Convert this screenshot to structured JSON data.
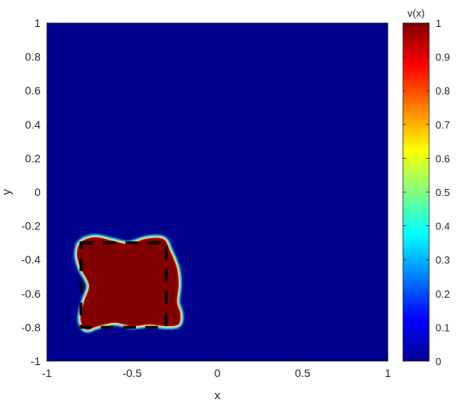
{
  "chart_data": {
    "type": "heatmap",
    "xlabel": "x",
    "ylabel": "y",
    "xlim": [
      -1,
      1
    ],
    "ylim": [
      -1,
      1
    ],
    "xticks": [
      -1,
      -0.5,
      0,
      0.5,
      1
    ],
    "yticks": [
      -1,
      -0.8,
      -0.6,
      -0.4,
      -0.2,
      0,
      0.2,
      0.4,
      0.6,
      0.8,
      1
    ],
    "colormap": "jet",
    "colorbar": {
      "title": "v(x)",
      "limits": [
        0,
        1
      ],
      "ticks": [
        0,
        0.1,
        0.2,
        0.3,
        0.4,
        0.5,
        0.6,
        0.7,
        0.8,
        0.9,
        1
      ]
    },
    "background_value": 0,
    "region": {
      "value": 1,
      "outline": [
        [
          -0.8,
          -0.3
        ],
        [
          -0.72,
          -0.27
        ],
        [
          -0.62,
          -0.29
        ],
        [
          -0.52,
          -0.31
        ],
        [
          -0.42,
          -0.28
        ],
        [
          -0.32,
          -0.28
        ],
        [
          -0.28,
          -0.35
        ],
        [
          -0.24,
          -0.45
        ],
        [
          -0.23,
          -0.55
        ],
        [
          -0.24,
          -0.65
        ],
        [
          -0.22,
          -0.72
        ],
        [
          -0.23,
          -0.78
        ],
        [
          -0.3,
          -0.79
        ],
        [
          -0.4,
          -0.78
        ],
        [
          -0.5,
          -0.79
        ],
        [
          -0.6,
          -0.77
        ],
        [
          -0.7,
          -0.79
        ],
        [
          -0.77,
          -0.81
        ],
        [
          -0.8,
          -0.75
        ],
        [
          -0.78,
          -0.65
        ],
        [
          -0.75,
          -0.55
        ],
        [
          -0.8,
          -0.45
        ],
        [
          -0.82,
          -0.37
        ]
      ]
    },
    "target_square": {
      "style": "dashed",
      "color": "#000000",
      "x": [
        -0.8,
        -0.3
      ],
      "y": [
        -0.8,
        -0.3
      ]
    }
  }
}
